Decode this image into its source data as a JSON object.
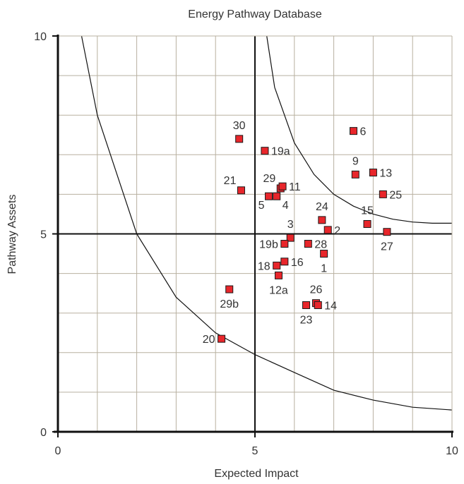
{
  "chart_data": {
    "type": "scatter",
    "title": "Energy Pathway Database",
    "xlabel": "Expected Impact",
    "ylabel": "Pathway Assets",
    "xlim": [
      0,
      10
    ],
    "ylim": [
      0,
      10
    ],
    "x_ticks": [
      "0",
      "5",
      "10"
    ],
    "y_ticks": [
      "0",
      "5",
      "10"
    ],
    "grid": true,
    "minor_grid_step": 1,
    "quadrant_dividers": {
      "x": 5,
      "y": 5
    },
    "curves": [
      {
        "name": "",
        "points": [
          [
            0.6,
            10
          ],
          [
            1.0,
            8.0
          ],
          [
            2.0,
            5.0
          ],
          [
            3.0,
            3.4
          ],
          [
            4.0,
            2.5
          ],
          [
            5.0,
            1.95
          ],
          [
            6.0,
            1.5
          ],
          [
            7.0,
            1.05
          ],
          [
            8.0,
            0.8
          ],
          [
            9.0,
            0.62
          ],
          [
            10.0,
            0.55
          ]
        ]
      },
      {
        "name": "",
        "points": [
          [
            5.3,
            10
          ],
          [
            5.5,
            8.7
          ],
          [
            6.0,
            7.3
          ],
          [
            6.5,
            6.5
          ],
          [
            7.0,
            6.0
          ],
          [
            7.5,
            5.7
          ],
          [
            8.0,
            5.5
          ],
          [
            8.5,
            5.37
          ],
          [
            9.0,
            5.3
          ],
          [
            9.5,
            5.27
          ],
          [
            10.0,
            5.27
          ]
        ]
      }
    ],
    "points": [
      {
        "label": "30",
        "x": 4.6,
        "y": 7.4,
        "label_pos": "above"
      },
      {
        "label": "19a",
        "x": 5.25,
        "y": 7.1,
        "label_pos": "right"
      },
      {
        "label": "6",
        "x": 7.5,
        "y": 7.6,
        "label_pos": "right"
      },
      {
        "label": "9",
        "x": 7.55,
        "y": 6.5,
        "label_pos": "above"
      },
      {
        "label": "13",
        "x": 8.0,
        "y": 6.55,
        "label_pos": "right"
      },
      {
        "label": "25",
        "x": 8.25,
        "y": 6.0,
        "label_pos": "right"
      },
      {
        "label": "21",
        "x": 4.65,
        "y": 6.1,
        "label_pos": "above-left"
      },
      {
        "label": "29",
        "x": 5.65,
        "y": 6.15,
        "label_pos": "above-left"
      },
      {
        "label": "11",
        "x": 5.7,
        "y": 6.2,
        "label_pos": "right"
      },
      {
        "label": "5",
        "x": 5.35,
        "y": 5.95,
        "label_pos": "below-left"
      },
      {
        "label": "4",
        "x": 5.55,
        "y": 5.95,
        "label_pos": "below-right"
      },
      {
        "label": "24",
        "x": 6.7,
        "y": 5.35,
        "label_pos": "above"
      },
      {
        "label": "2",
        "x": 6.85,
        "y": 5.1,
        "label_pos": "right"
      },
      {
        "label": "15",
        "x": 7.85,
        "y": 5.25,
        "label_pos": "above"
      },
      {
        "label": "27",
        "x": 8.35,
        "y": 5.05,
        "label_pos": "below"
      },
      {
        "label": "3",
        "x": 5.9,
        "y": 4.9,
        "label_pos": "above"
      },
      {
        "label": "19b",
        "x": 5.75,
        "y": 4.75,
        "label_pos": "left"
      },
      {
        "label": "28",
        "x": 6.35,
        "y": 4.75,
        "label_pos": "right"
      },
      {
        "label": "1",
        "x": 6.75,
        "y": 4.5,
        "label_pos": "below"
      },
      {
        "label": "18",
        "x": 5.55,
        "y": 4.2,
        "label_pos": "left"
      },
      {
        "label": "16",
        "x": 5.75,
        "y": 4.3,
        "label_pos": "right"
      },
      {
        "label": "12a",
        "x": 5.6,
        "y": 3.95,
        "label_pos": "below"
      },
      {
        "label": "29b",
        "x": 4.35,
        "y": 3.6,
        "label_pos": "below"
      },
      {
        "label": "26",
        "x": 6.55,
        "y": 3.25,
        "label_pos": "above"
      },
      {
        "label": "14",
        "x": 6.6,
        "y": 3.2,
        "label_pos": "right"
      },
      {
        "label": "23",
        "x": 6.3,
        "y": 3.2,
        "label_pos": "below"
      },
      {
        "label": "20",
        "x": 4.15,
        "y": 2.35,
        "label_pos": "left"
      }
    ],
    "colors": {
      "marker_fill": "#e8262b",
      "marker_stroke": "#1a1a1a",
      "grid": "#b8b0a0",
      "axis": "#111111",
      "curve": "#111111"
    }
  }
}
